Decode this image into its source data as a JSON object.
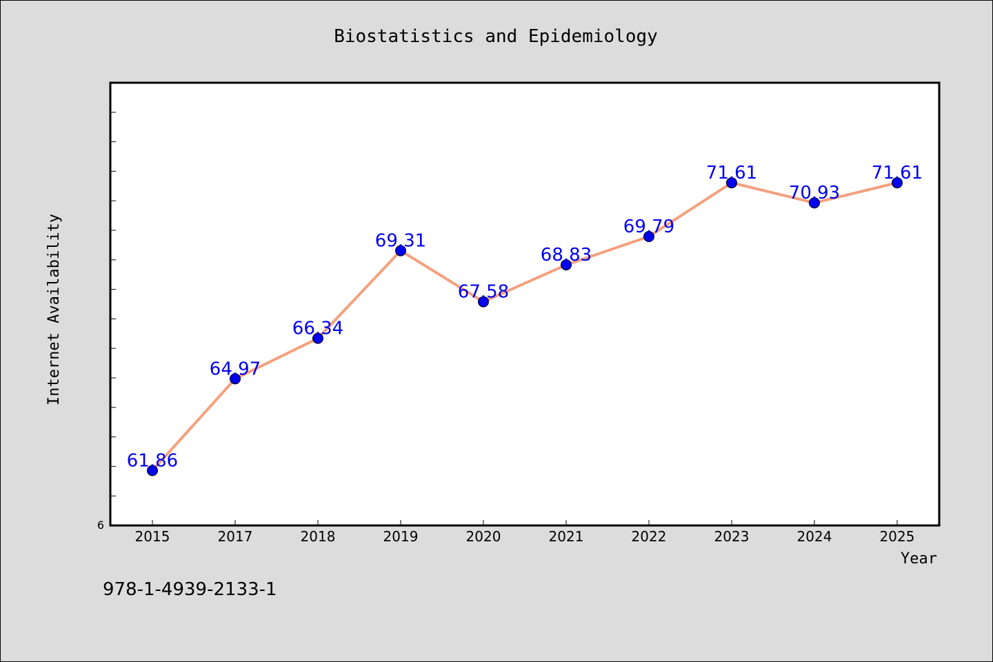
{
  "footer_code": "978-1-4939-2133-1",
  "colors": {
    "background": "#dcdcdc",
    "plot_background": "#ffffff",
    "line": "#f4a07e",
    "marker": "#0000ee",
    "data_label": "#0000ee"
  },
  "chart_data": {
    "type": "line",
    "title": "Biostatistics and Epidemiology",
    "xlabel": "Year",
    "ylabel": "Internet Availability",
    "categories": [
      "2015",
      "2017",
      "2018",
      "2019",
      "2020",
      "2021",
      "2022",
      "2023",
      "2024",
      "2025"
    ],
    "series": [
      {
        "values": [
          61.86,
          64.97,
          66.34,
          69.31,
          67.58,
          68.83,
          69.79,
          71.61,
          70.93,
          71.61
        ],
        "labels": [
          "61.86",
          "64.97",
          "66.34",
          "69.31",
          "67.58",
          "68.83",
          "69.79",
          "71.61",
          "70.93",
          "71.61"
        ]
      }
    ],
    "ylim": [
      60,
      75
    ],
    "y_tick_labels": [
      "6"
    ],
    "grid": false,
    "legend": "none"
  }
}
